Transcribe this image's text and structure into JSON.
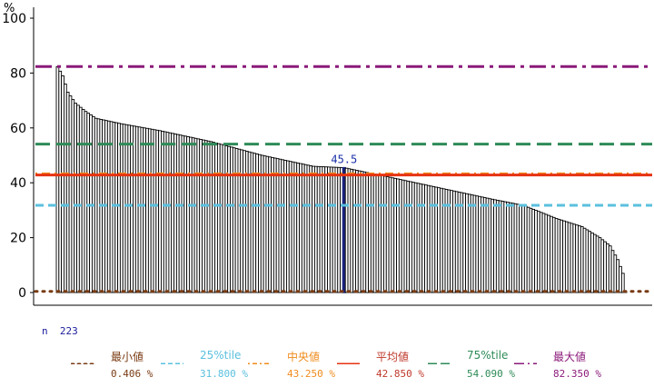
{
  "y_axis_label": "%",
  "n_label": "n",
  "n_value": "223",
  "colors": {
    "bar_fill": "#ffffff",
    "bar_stroke": "#000000",
    "highlight": "#1a237e",
    "highlight_label": "#1a2fa8",
    "axis": "#000000"
  },
  "stats": [
    {
      "key": "min",
      "label": "最小値",
      "value_text": "0.406 %",
      "value": 0.406,
      "color": "#7a3b13",
      "label_color": "#7a3b13",
      "value_color": "#7a3b13",
      "dash": "dots"
    },
    {
      "key": "p25",
      "label": "25%tile",
      "value_text": "31.800 %",
      "value": 31.8,
      "color": "#5bc0de",
      "label_color": "#5bc0de",
      "value_color": "#5bc0de",
      "dash": "dashed"
    },
    {
      "key": "median",
      "label": "中央値",
      "value_text": "43.250 %",
      "value": 43.25,
      "color": "#f08c1e",
      "label_color": "#f08c1e",
      "value_color": "#f08c1e",
      "dash": "dotdash"
    },
    {
      "key": "mean",
      "label": "平均値",
      "value_text": "42.850 %",
      "value": 42.85,
      "color": "#e63312",
      "label_color": "#c0392b",
      "value_color": "#c0392b",
      "dash": "solid"
    },
    {
      "key": "p75",
      "label": "75%tile",
      "value_text": "54.090 %",
      "value": 54.09,
      "color": "#2e8b57",
      "label_color": "#2e8b57",
      "value_color": "#2e8b57",
      "dash": "longdash"
    },
    {
      "key": "max",
      "label": "最大値",
      "value_text": "82.350 %",
      "value": 82.35,
      "color": "#8b1a7a",
      "label_color": "#8b1a7a",
      "value_color": "#8b1a7a",
      "dash": "twodash"
    }
  ],
  "chart_data": {
    "type": "bar",
    "title": "",
    "xlabel": "",
    "ylabel": "%",
    "ylim": [
      0,
      100
    ],
    "yticks": [
      0,
      20,
      40,
      60,
      80,
      100
    ],
    "count": 223,
    "sorted": "descending",
    "highlight_value": 45.5,
    "highlight_label": "45.5",
    "curve_profile": [
      [
        0,
        82.35
      ],
      [
        2,
        79
      ],
      [
        4,
        73
      ],
      [
        7,
        69
      ],
      [
        11,
        66
      ],
      [
        15,
        63.5
      ],
      [
        25,
        61.5
      ],
      [
        40,
        59
      ],
      [
        60,
        55
      ],
      [
        80,
        50
      ],
      [
        100,
        46
      ],
      [
        112,
        45.5
      ],
      [
        130,
        42
      ],
      [
        150,
        38
      ],
      [
        170,
        34
      ],
      [
        182,
        31.8
      ],
      [
        195,
        27
      ],
      [
        205,
        24
      ],
      [
        212,
        20
      ],
      [
        216,
        17
      ],
      [
        219,
        12
      ],
      [
        221,
        7
      ],
      [
        222,
        0.406
      ]
    ],
    "reference_lines": [
      {
        "name": "最小値",
        "value": 0.406
      },
      {
        "name": "25%tile",
        "value": 31.8
      },
      {
        "name": "中央値",
        "value": 43.25
      },
      {
        "name": "平均値",
        "value": 42.85
      },
      {
        "name": "75%tile",
        "value": 54.09
      },
      {
        "name": "最大値",
        "value": 82.35
      }
    ]
  }
}
